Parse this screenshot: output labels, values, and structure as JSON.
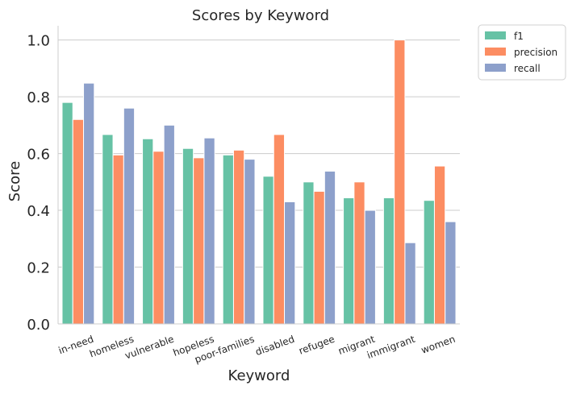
{
  "chart_data": {
    "type": "bar",
    "title": "Scores by Keyword",
    "xlabel": "Keyword",
    "ylabel": "Score",
    "ylim": [
      0,
      1.05
    ],
    "yticks": [
      0.0,
      0.2,
      0.4,
      0.6,
      0.8,
      1.0
    ],
    "ytick_labels": [
      "0.0",
      "0.2",
      "0.4",
      "0.6",
      "0.8",
      "1.0"
    ],
    "grid": "horizontal",
    "legend_position": "outside-top-right",
    "categories": [
      "in-need",
      "homeless",
      "vulnerable",
      "hopeless",
      "poor-families",
      "disabled",
      "refugee",
      "migrant",
      "immigrant",
      "women"
    ],
    "series": [
      {
        "name": "f1",
        "color": "#66c2a5",
        "values": [
          0.78,
          0.667,
          0.652,
          0.618,
          0.595,
          0.52,
          0.5,
          0.444,
          0.444,
          0.435
        ]
      },
      {
        "name": "precision",
        "color": "#fc8d62",
        "values": [
          0.72,
          0.595,
          0.608,
          0.585,
          0.612,
          0.667,
          0.467,
          0.5,
          1.0,
          0.556
        ]
      },
      {
        "name": "recall",
        "color": "#8da0cb",
        "values": [
          0.848,
          0.76,
          0.7,
          0.655,
          0.58,
          0.43,
          0.538,
          0.4,
          0.286,
          0.36
        ]
      }
    ]
  }
}
